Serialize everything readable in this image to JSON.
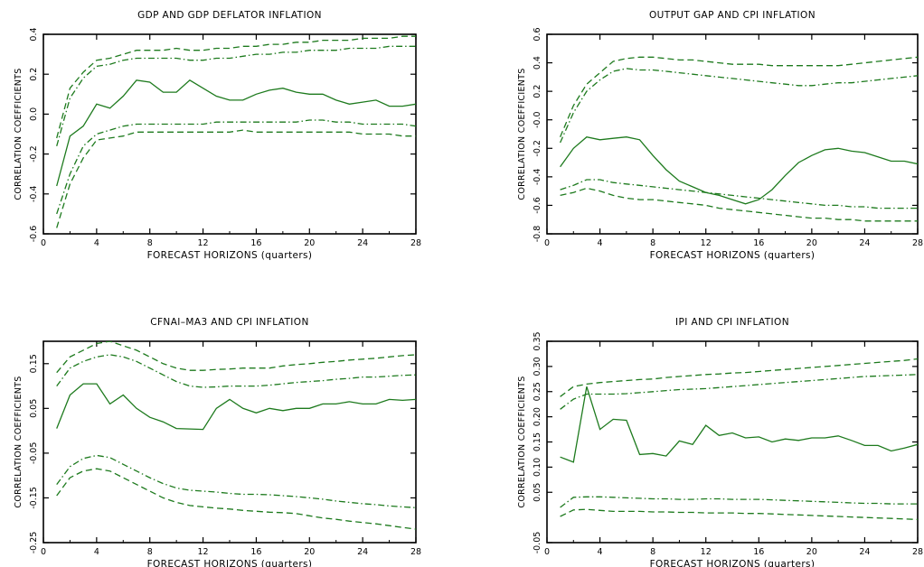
{
  "colors": {
    "series": "#1d7a1d",
    "axis": "#000000"
  },
  "chart_data": [
    {
      "type": "line",
      "title": "GDP AND GDP DEFLATOR INFLATION",
      "xlabel": "FORECAST HORIZONS (quarters)",
      "ylabel": "CORRELATION COEFFICIENTS",
      "xlim": [
        0,
        28
      ],
      "ylim": [
        -0.6,
        0.4
      ],
      "xticks": [
        0,
        4,
        8,
        12,
        16,
        20,
        24,
        28
      ],
      "yticks": [
        -0.6,
        -0.4,
        -0.2,
        0.0,
        0.2,
        0.4
      ],
      "ytick_labels": [
        "-0.6",
        "-0.4",
        "-0.2",
        "0.0",
        "0.2",
        "0.4"
      ],
      "grid": false,
      "x": [
        1,
        2,
        3,
        4,
        5,
        6,
        7,
        8,
        9,
        10,
        11,
        12,
        13,
        14,
        15,
        16,
        17,
        18,
        19,
        20,
        21,
        22,
        23,
        24,
        25,
        26,
        27,
        28
      ],
      "series": [
        {
          "style": "dashed",
          "values": [
            -0.12,
            0.13,
            0.21,
            0.27,
            0.28,
            0.3,
            0.32,
            0.32,
            0.32,
            0.33,
            0.32,
            0.32,
            0.33,
            0.33,
            0.34,
            0.34,
            0.35,
            0.35,
            0.36,
            0.36,
            0.37,
            0.37,
            0.37,
            0.38,
            0.38,
            0.38,
            0.39,
            0.39
          ]
        },
        {
          "style": "dashdot",
          "values": [
            -0.16,
            0.08,
            0.18,
            0.24,
            0.25,
            0.27,
            0.28,
            0.28,
            0.28,
            0.28,
            0.27,
            0.27,
            0.28,
            0.28,
            0.29,
            0.3,
            0.3,
            0.31,
            0.31,
            0.32,
            0.32,
            0.32,
            0.33,
            0.33,
            0.33,
            0.34,
            0.34,
            0.34
          ]
        },
        {
          "style": "solid",
          "values": [
            -0.36,
            -0.11,
            -0.06,
            0.05,
            0.03,
            0.09,
            0.17,
            0.16,
            0.11,
            0.11,
            0.17,
            0.13,
            0.09,
            0.07,
            0.07,
            0.1,
            0.12,
            0.13,
            0.11,
            0.1,
            0.1,
            0.07,
            0.05,
            0.06,
            0.07,
            0.04,
            0.04,
            0.05
          ]
        },
        {
          "style": "dashdot",
          "values": [
            -0.5,
            -0.3,
            -0.16,
            -0.1,
            -0.08,
            -0.06,
            -0.05,
            -0.05,
            -0.05,
            -0.05,
            -0.05,
            -0.05,
            -0.04,
            -0.04,
            -0.04,
            -0.04,
            -0.04,
            -0.04,
            -0.04,
            -0.03,
            -0.03,
            -0.04,
            -0.04,
            -0.05,
            -0.05,
            -0.05,
            -0.05,
            -0.06
          ]
        },
        {
          "style": "dashed",
          "values": [
            -0.57,
            -0.35,
            -0.22,
            -0.13,
            -0.12,
            -0.11,
            -0.09,
            -0.09,
            -0.09,
            -0.09,
            -0.09,
            -0.09,
            -0.09,
            -0.09,
            -0.08,
            -0.09,
            -0.09,
            -0.09,
            -0.09,
            -0.09,
            -0.09,
            -0.09,
            -0.09,
            -0.1,
            -0.1,
            -0.1,
            -0.11,
            -0.11
          ]
        }
      ]
    },
    {
      "type": "line",
      "title": "OUTPUT GAP AND CPI INFLATION",
      "xlabel": "FORECAST HORIZONS (quarters)",
      "ylabel": "CORRELATION COEFFICIENTS",
      "xlim": [
        0,
        28
      ],
      "ylim": [
        -0.8,
        0.6
      ],
      "xticks": [
        0,
        4,
        8,
        12,
        16,
        20,
        24,
        28
      ],
      "yticks": [
        -0.8,
        -0.6,
        -0.4,
        -0.2,
        0.0,
        0.2,
        0.4,
        0.6
      ],
      "ytick_labels": [
        "-0.8",
        "-0.6",
        "-0.4",
        "-0.2",
        "-0.0",
        "0.2",
        "0.4",
        "0.6"
      ],
      "grid": false,
      "x": [
        1,
        2,
        3,
        4,
        5,
        6,
        7,
        8,
        9,
        10,
        11,
        12,
        13,
        14,
        15,
        16,
        17,
        18,
        19,
        20,
        21,
        22,
        23,
        24,
        25,
        26,
        27,
        28
      ],
      "series": [
        {
          "style": "dashed",
          "values": [
            -0.12,
            0.1,
            0.25,
            0.33,
            0.41,
            0.43,
            0.44,
            0.44,
            0.43,
            0.42,
            0.42,
            0.41,
            0.4,
            0.39,
            0.39,
            0.39,
            0.38,
            0.38,
            0.38,
            0.38,
            0.38,
            0.38,
            0.39,
            0.4,
            0.41,
            0.42,
            0.43,
            0.44
          ]
        },
        {
          "style": "dashdot",
          "values": [
            -0.16,
            0.05,
            0.2,
            0.28,
            0.34,
            0.36,
            0.35,
            0.35,
            0.34,
            0.33,
            0.32,
            0.31,
            0.3,
            0.29,
            0.28,
            0.27,
            0.26,
            0.25,
            0.24,
            0.24,
            0.25,
            0.26,
            0.26,
            0.27,
            0.28,
            0.29,
            0.3,
            0.31
          ]
        },
        {
          "style": "solid",
          "values": [
            -0.33,
            -0.2,
            -0.12,
            -0.14,
            -0.13,
            -0.12,
            -0.14,
            -0.25,
            -0.35,
            -0.43,
            -0.47,
            -0.51,
            -0.53,
            -0.56,
            -0.59,
            -0.56,
            -0.49,
            -0.39,
            -0.3,
            -0.25,
            -0.21,
            -0.2,
            -0.22,
            -0.23,
            -0.26,
            -0.29,
            -0.29,
            -0.31
          ]
        },
        {
          "style": "dashdot",
          "values": [
            -0.49,
            -0.46,
            -0.42,
            -0.42,
            -0.44,
            -0.45,
            -0.46,
            -0.47,
            -0.48,
            -0.49,
            -0.5,
            -0.51,
            -0.52,
            -0.53,
            -0.54,
            -0.55,
            -0.56,
            -0.57,
            -0.58,
            -0.59,
            -0.6,
            -0.6,
            -0.61,
            -0.61,
            -0.62,
            -0.62,
            -0.62,
            -0.62
          ]
        },
        {
          "style": "dashed",
          "values": [
            -0.53,
            -0.51,
            -0.48,
            -0.5,
            -0.53,
            -0.55,
            -0.56,
            -0.56,
            -0.57,
            -0.58,
            -0.59,
            -0.6,
            -0.62,
            -0.63,
            -0.64,
            -0.65,
            -0.66,
            -0.67,
            -0.68,
            -0.69,
            -0.69,
            -0.7,
            -0.7,
            -0.71,
            -0.71,
            -0.71,
            -0.71,
            -0.71
          ]
        }
      ]
    },
    {
      "type": "line",
      "title": "CFNAI–MA3 AND CPI INFLATION",
      "xlabel": "FORECAST HORIZONS (quarters)",
      "ylabel": "CORRELATION COEFFICIENTS",
      "xlim": [
        0,
        28
      ],
      "ylim": [
        -0.25,
        0.2
      ],
      "xticks": [
        0,
        4,
        8,
        12,
        16,
        20,
        24,
        28
      ],
      "yticks": [
        -0.25,
        -0.15,
        -0.05,
        0.05,
        0.15
      ],
      "ytick_labels": [
        "-0.25",
        "-0.15",
        "-0.05",
        "0.05",
        "0.15"
      ],
      "grid": false,
      "x": [
        1,
        2,
        3,
        4,
        5,
        6,
        7,
        8,
        9,
        10,
        11,
        12,
        13,
        14,
        15,
        16,
        17,
        18,
        19,
        20,
        21,
        22,
        23,
        24,
        25,
        26,
        27,
        28
      ],
      "series": [
        {
          "style": "dashed",
          "values": [
            0.13,
            0.165,
            0.18,
            0.195,
            0.2,
            0.19,
            0.18,
            0.165,
            0.15,
            0.14,
            0.135,
            0.135,
            0.137,
            0.138,
            0.14,
            0.14,
            0.14,
            0.145,
            0.148,
            0.15,
            0.153,
            0.155,
            0.158,
            0.16,
            0.162,
            0.165,
            0.168,
            0.17
          ]
        },
        {
          "style": "dashdot",
          "values": [
            0.1,
            0.14,
            0.155,
            0.165,
            0.17,
            0.165,
            0.155,
            0.14,
            0.125,
            0.11,
            0.1,
            0.097,
            0.098,
            0.1,
            0.1,
            0.1,
            0.102,
            0.105,
            0.108,
            0.11,
            0.112,
            0.115,
            0.117,
            0.12,
            0.12,
            0.122,
            0.124,
            0.125
          ]
        },
        {
          "style": "solid",
          "values": [
            0.005,
            0.08,
            0.105,
            0.105,
            0.06,
            0.08,
            0.05,
            0.03,
            0.02,
            0.005,
            0.004,
            0.003,
            0.05,
            0.07,
            0.05,
            0.04,
            0.05,
            0.045,
            0.05,
            0.05,
            0.06,
            0.06,
            0.065,
            0.06,
            0.06,
            0.07,
            0.068,
            0.07
          ]
        },
        {
          "style": "dashdot",
          "values": [
            -0.12,
            -0.08,
            -0.062,
            -0.055,
            -0.06,
            -0.075,
            -0.09,
            -0.105,
            -0.118,
            -0.128,
            -0.133,
            -0.135,
            -0.137,
            -0.14,
            -0.142,
            -0.142,
            -0.143,
            -0.145,
            -0.147,
            -0.15,
            -0.153,
            -0.157,
            -0.16,
            -0.163,
            -0.165,
            -0.168,
            -0.17,
            -0.172
          ]
        },
        {
          "style": "dashed",
          "values": [
            -0.145,
            -0.105,
            -0.09,
            -0.085,
            -0.09,
            -0.105,
            -0.12,
            -0.135,
            -0.15,
            -0.16,
            -0.167,
            -0.17,
            -0.173,
            -0.175,
            -0.178,
            -0.18,
            -0.182,
            -0.183,
            -0.185,
            -0.19,
            -0.195,
            -0.198,
            -0.202,
            -0.205,
            -0.208,
            -0.212,
            -0.216,
            -0.22
          ]
        }
      ]
    },
    {
      "type": "line",
      "title": "IPI AND CPI INFLATION",
      "xlabel": "FORECAST HORIZONS (quarters)",
      "ylabel": "CORRELATION COEFFICIENTS",
      "xlim": [
        0,
        28
      ],
      "ylim": [
        -0.05,
        0.35
      ],
      "xticks": [
        0,
        4,
        8,
        12,
        16,
        20,
        24,
        28
      ],
      "yticks": [
        -0.05,
        0.05,
        0.1,
        0.15,
        0.2,
        0.25,
        0.3,
        0.35
      ],
      "ytick_labels": [
        "-0.05",
        "0.05",
        "0.10",
        "0.15",
        "0.20",
        "0.25",
        "0.30",
        "0.35"
      ],
      "grid": false,
      "x": [
        1,
        2,
        3,
        4,
        5,
        6,
        7,
        8,
        9,
        10,
        11,
        12,
        13,
        14,
        15,
        16,
        17,
        18,
        19,
        20,
        21,
        22,
        23,
        24,
        25,
        26,
        27,
        28
      ],
      "series": [
        {
          "style": "dashed",
          "values": [
            0.24,
            0.26,
            0.265,
            0.268,
            0.27,
            0.272,
            0.274,
            0.275,
            0.278,
            0.28,
            0.282,
            0.284,
            0.285,
            0.287,
            0.288,
            0.29,
            0.292,
            0.294,
            0.296,
            0.298,
            0.3,
            0.302,
            0.304,
            0.306,
            0.308,
            0.31,
            0.312,
            0.315
          ]
        },
        {
          "style": "dashdot",
          "values": [
            0.215,
            0.235,
            0.245,
            0.245,
            0.245,
            0.246,
            0.248,
            0.25,
            0.252,
            0.254,
            0.255,
            0.256,
            0.258,
            0.26,
            0.262,
            0.264,
            0.266,
            0.268,
            0.27,
            0.272,
            0.274,
            0.276,
            0.278,
            0.28,
            0.281,
            0.282,
            0.283,
            0.284
          ]
        },
        {
          "style": "solid",
          "values": [
            0.12,
            0.11,
            0.26,
            0.175,
            0.195,
            0.193,
            0.125,
            0.127,
            0.122,
            0.152,
            0.145,
            0.183,
            0.163,
            0.168,
            0.158,
            0.16,
            0.15,
            0.156,
            0.153,
            0.158,
            0.158,
            0.162,
            0.153,
            0.143,
            0.143,
            0.132,
            0.138,
            0.145
          ]
        },
        {
          "style": "dashdot",
          "values": [
            0.02,
            0.04,
            0.041,
            0.041,
            0.04,
            0.039,
            0.038,
            0.037,
            0.037,
            0.036,
            0.036,
            0.037,
            0.037,
            0.036,
            0.036,
            0.036,
            0.035,
            0.034,
            0.033,
            0.032,
            0.031,
            0.03,
            0.029,
            0.028,
            0.028,
            0.027,
            0.027,
            0.027
          ]
        },
        {
          "style": "dashed",
          "values": [
            0.002,
            0.015,
            0.016,
            0.014,
            0.012,
            0.012,
            0.012,
            0.011,
            0.011,
            0.01,
            0.01,
            0.009,
            0.009,
            0.009,
            0.008,
            0.008,
            0.007,
            0.006,
            0.005,
            0.004,
            0.003,
            0.002,
            0.001,
            0.0,
            -0.001,
            -0.002,
            -0.003,
            -0.004
          ]
        }
      ]
    }
  ]
}
